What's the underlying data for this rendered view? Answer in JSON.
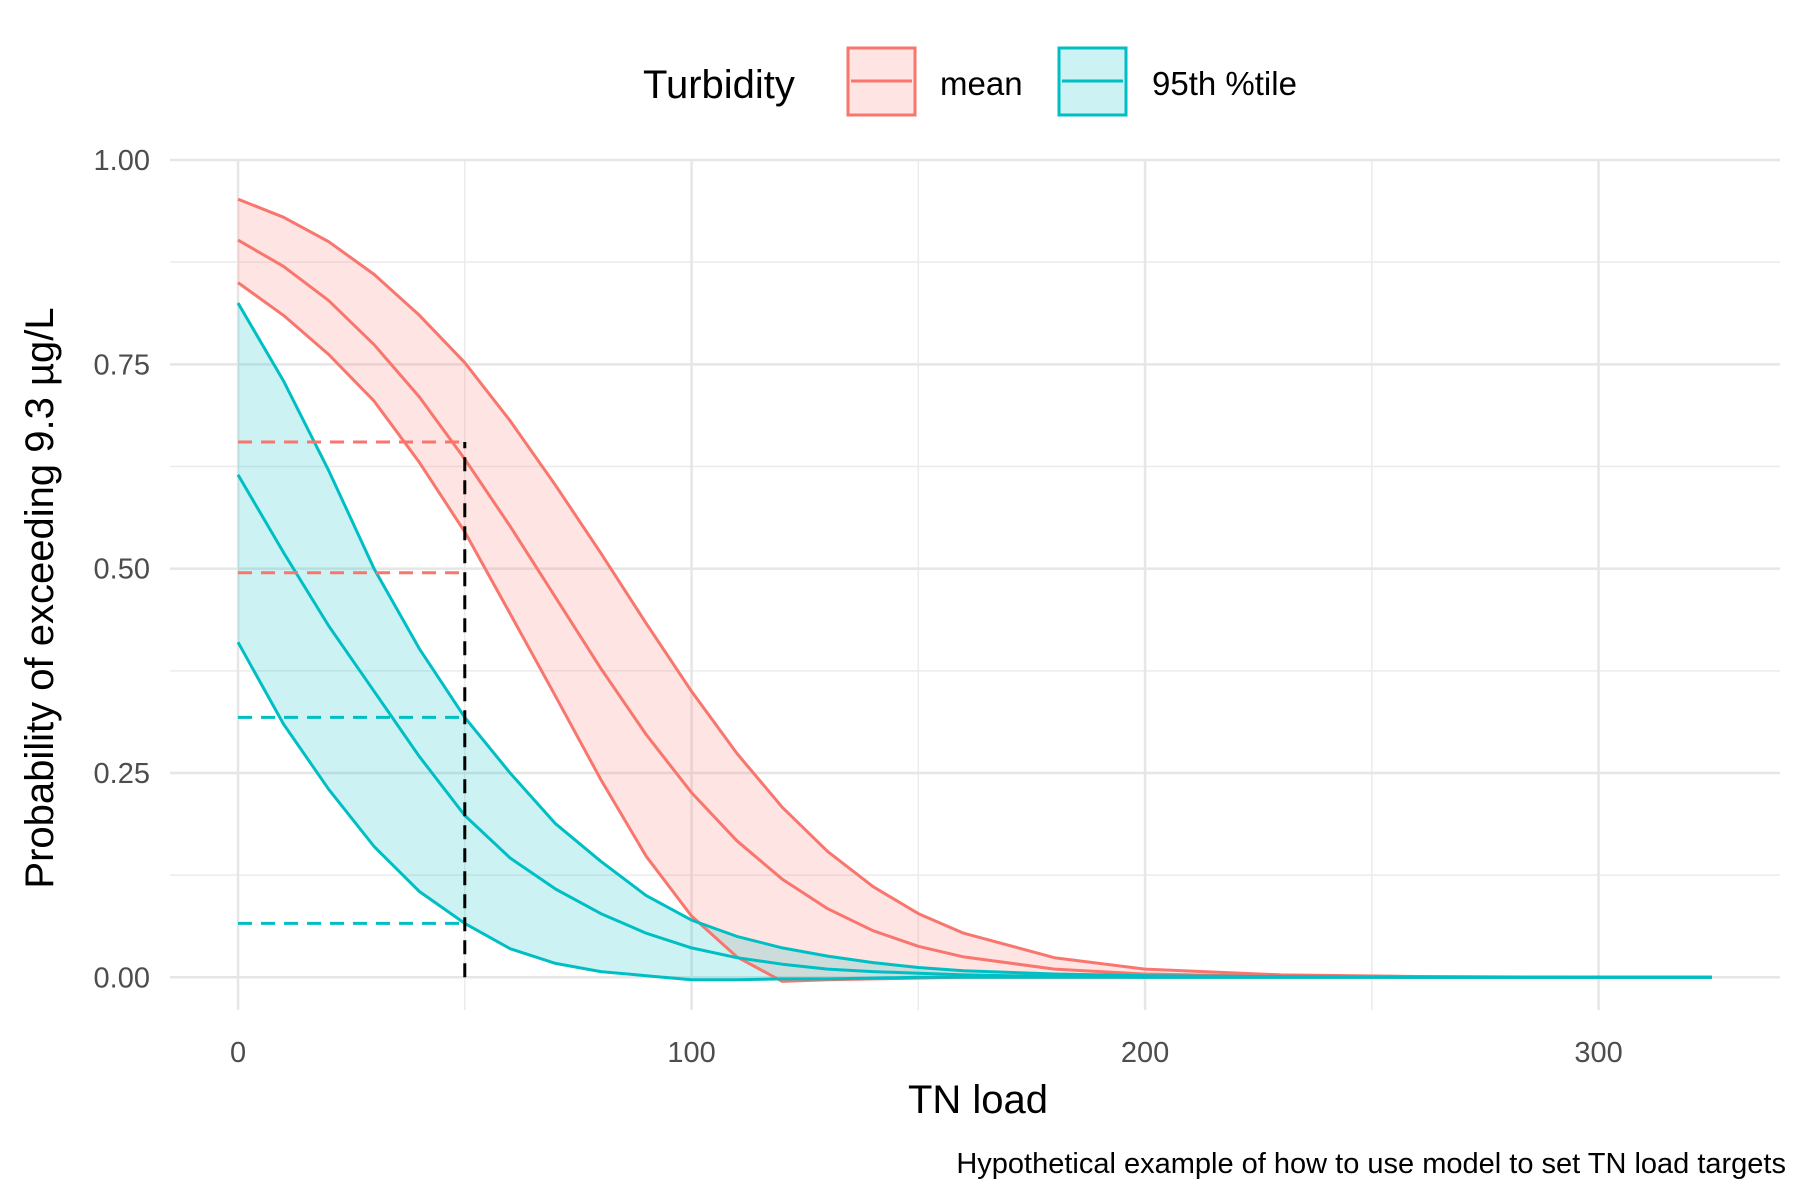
{
  "chart_data": {
    "type": "area",
    "xlabel": "TN load",
    "ylabel": "Probability of exceeding 9.3 µg/L",
    "caption": "Hypothetical example of how to use model to set TN load targets",
    "xlim": [
      -15,
      340
    ],
    "ylim": [
      -0.04,
      1.0
    ],
    "x_ticks": [
      0,
      100,
      200,
      300
    ],
    "y_ticks": [
      0,
      0.25,
      0.5,
      0.75,
      1.0
    ],
    "y_tick_labels": [
      "0.00",
      "0.25",
      "0.50",
      "0.75",
      "1.00"
    ],
    "grid": true,
    "legend": {
      "title": "Turbidity",
      "position": "top",
      "entries": [
        "mean",
        "95th %tile"
      ]
    },
    "series": [
      {
        "name": "mean",
        "color": "#F8766D",
        "x": [
          0,
          10,
          20,
          30,
          40,
          50,
          60,
          70,
          80,
          90,
          100,
          110,
          120,
          130,
          140,
          150,
          160,
          180,
          200,
          230,
          260,
          300,
          325
        ],
        "mid": [
          0.902,
          0.87,
          0.828,
          0.774,
          0.71,
          0.634,
          0.552,
          0.465,
          0.378,
          0.297,
          0.226,
          0.167,
          0.12,
          0.084,
          0.057,
          0.038,
          0.025,
          0.01,
          0.004,
          0.001,
          0.0,
          0.0,
          0.0
        ],
        "upper": [
          0.952,
          0.93,
          0.9,
          0.86,
          0.81,
          0.752,
          0.681,
          0.602,
          0.519,
          0.433,
          0.35,
          0.274,
          0.208,
          0.154,
          0.111,
          0.078,
          0.054,
          0.024,
          0.01,
          0.003,
          0.001,
          0.0,
          0.0
        ],
        "lower": [
          0.85,
          0.81,
          0.762,
          0.705,
          0.63,
          0.545,
          0.445,
          0.344,
          0.242,
          0.148,
          0.075,
          0.025,
          -0.005,
          -0.003,
          -0.002,
          -0.001,
          0.0,
          0.0,
          0.0,
          0.0,
          0.0,
          0.0,
          0.0
        ]
      },
      {
        "name": "95th %tile",
        "color": "#00BFC4",
        "x": [
          0,
          10,
          20,
          30,
          40,
          50,
          60,
          70,
          80,
          90,
          100,
          110,
          120,
          130,
          140,
          150,
          160,
          180,
          200,
          230,
          260,
          300,
          325
        ],
        "mid": [
          0.615,
          0.52,
          0.43,
          0.35,
          0.27,
          0.198,
          0.146,
          0.108,
          0.078,
          0.054,
          0.036,
          0.024,
          0.016,
          0.01,
          0.007,
          0.005,
          0.003,
          0.001,
          0.0,
          0.0,
          0.0,
          0.0,
          0.0
        ],
        "upper": [
          0.825,
          0.73,
          0.62,
          0.5,
          0.402,
          0.318,
          0.25,
          0.188,
          0.142,
          0.1,
          0.07,
          0.05,
          0.036,
          0.026,
          0.018,
          0.012,
          0.008,
          0.004,
          0.002,
          0.001,
          0.0,
          0.0,
          0.0
        ],
        "lower": [
          0.41,
          0.31,
          0.23,
          0.16,
          0.105,
          0.066,
          0.035,
          0.017,
          0.007,
          0.002,
          -0.003,
          -0.003,
          -0.002,
          -0.002,
          -0.001,
          0.0,
          0.0,
          0.0,
          0.0,
          0.0,
          0.0,
          0.0,
          0.0
        ]
      }
    ],
    "annotations": {
      "vline": {
        "x": 50,
        "y_from": 0,
        "y_to": 0.655,
        "color": "#000000"
      },
      "hlines": [
        {
          "y": 0.655,
          "x_from": 0,
          "x_to": 50,
          "color": "#F8766D"
        },
        {
          "y": 0.495,
          "x_from": 0,
          "x_to": 50,
          "color": "#F8766D"
        },
        {
          "y": 0.318,
          "x_from": 0,
          "x_to": 50,
          "color": "#00BFC4"
        },
        {
          "y": 0.066,
          "x_from": 0,
          "x_to": 50,
          "color": "#00BFC4"
        }
      ]
    }
  }
}
